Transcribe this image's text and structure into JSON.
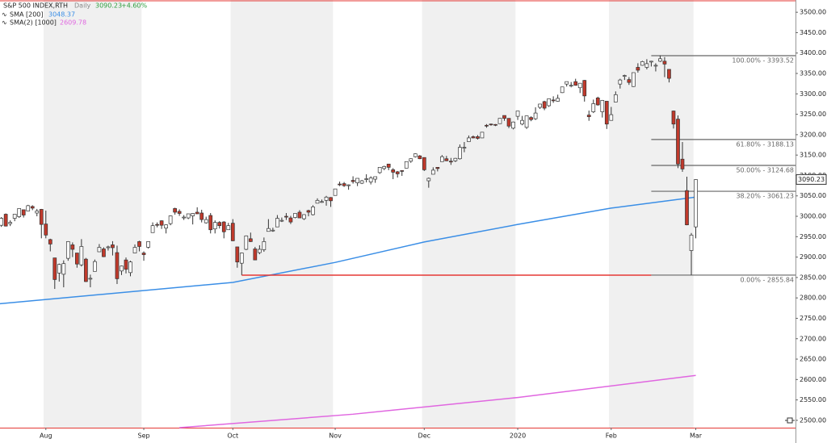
{
  "chart_data": {
    "type": "candlestick",
    "header": {
      "symbol": "S&P 500 INDEX,RTH",
      "interval": "Daily",
      "last_price": 3090.23,
      "change": "+4.60%"
    },
    "up_color": "#ffffff",
    "down_color": "#c0392b",
    "xlim": [
      0.7,
      179.4
    ],
    "ylim": [
      2482,
      3530
    ],
    "xticks": [
      {
        "value": 11,
        "label": "Aug"
      },
      {
        "value": 33,
        "label": "Sep"
      },
      {
        "value": 53,
        "label": "Oct"
      },
      {
        "value": 76,
        "label": "Nov"
      },
      {
        "value": 96,
        "label": "Dec"
      },
      {
        "value": 117,
        "label": "2020"
      },
      {
        "value": 138,
        "label": "Feb"
      },
      {
        "value": 157,
        "label": "Mar"
      }
    ],
    "yticks": [
      {
        "value": 2500,
        "label": "2500.00"
      },
      {
        "value": 2550,
        "label": "2550.00"
      },
      {
        "value": 2600,
        "label": "2600.00"
      },
      {
        "value": 2650,
        "label": "2650.00"
      },
      {
        "value": 2700,
        "label": "2700.00"
      },
      {
        "value": 2750,
        "label": "2750.00"
      },
      {
        "value": 2800,
        "label": "2800.00"
      },
      {
        "value": 2850,
        "label": "2850.00"
      },
      {
        "value": 2900,
        "label": "2900.00"
      },
      {
        "value": 2950,
        "label": "2950.00"
      },
      {
        "value": 3000,
        "label": "3000.00"
      },
      {
        "value": 3050,
        "label": "3050.00"
      },
      {
        "value": 3100,
        "label": "3100.00"
      },
      {
        "value": 3150,
        "label": "3150.00"
      },
      {
        "value": 3200,
        "label": "3200.00"
      },
      {
        "value": 3250,
        "label": "3250.00"
      },
      {
        "value": 3300,
        "label": "3300.00"
      },
      {
        "value": 3350,
        "label": "3350.00"
      },
      {
        "value": 3400,
        "label": "3400.00"
      },
      {
        "value": 3450,
        "label": "3450.00"
      },
      {
        "value": 3500,
        "label": "3500.00"
      }
    ],
    "candles": [
      [
        2999,
        3005,
        2984,
        2984
      ],
      [
        2978,
        2998,
        2974,
        2995
      ],
      [
        3005,
        3007,
        2975,
        2976
      ],
      [
        2982,
        2990,
        2976,
        2985
      ],
      [
        2995,
        3005,
        2988,
        3005
      ],
      [
        2999,
        3019,
        2996,
        3019
      ],
      [
        3016,
        3016,
        2997,
        3003
      ],
      [
        3013,
        3028,
        3013,
        3026
      ],
      [
        3024,
        3027,
        3015,
        3020
      ],
      [
        3008,
        3018,
        3000,
        3013
      ],
      [
        3017,
        3018,
        2946,
        2980
      ],
      [
        2981,
        3014,
        2946,
        2954
      ],
      [
        2943,
        2945,
        2914,
        2932
      ],
      [
        2898,
        2898,
        2822,
        2845
      ],
      [
        2861,
        2884,
        2840,
        2882
      ],
      [
        2858,
        2892,
        2826,
        2884
      ],
      [
        2897,
        2939,
        2891,
        2938
      ],
      [
        2930,
        2936,
        2900,
        2919
      ],
      [
        2910,
        2910,
        2874,
        2883
      ],
      [
        2881,
        2944,
        2877,
        2926
      ],
      [
        2895,
        2898,
        2839,
        2840
      ],
      [
        2846,
        2857,
        2826,
        2848
      ],
      [
        2865,
        2894,
        2865,
        2889
      ],
      [
        2913,
        2932,
        2913,
        2924
      ],
      [
        2920,
        2924,
        2900,
        2901
      ],
      [
        2923,
        2928,
        2916,
        2925
      ],
      [
        2930,
        2939,
        2904,
        2923
      ],
      [
        2911,
        2928,
        2834,
        2847
      ],
      [
        2866,
        2879,
        2856,
        2878
      ],
      [
        2893,
        2899,
        2860,
        2870
      ],
      [
        2862,
        2891,
        2853,
        2888
      ],
      [
        2910,
        2931,
        2910,
        2924
      ],
      [
        2938,
        2940,
        2914,
        2926
      ],
      [
        2910,
        2914,
        2891,
        2906
      ],
      [
        2924,
        2938,
        2921,
        2938
      ],
      [
        2960,
        2985,
        2960,
        2977
      ],
      [
        2980,
        2985,
        2973,
        2979
      ],
      [
        2989,
        2990,
        2969,
        2978
      ],
      [
        2971,
        2980,
        2958,
        2979
      ],
      [
        2982,
        3002,
        2978,
        3001
      ],
      [
        3019,
        3021,
        3004,
        3010
      ],
      [
        3012,
        3017,
        3001,
        3007
      ],
      [
        2997,
        3003,
        2991,
        2998
      ],
      [
        2996,
        3006,
        2993,
        3006
      ],
      [
        3001,
        3008,
        2980,
        3007
      ],
      [
        3010,
        3022,
        3006,
        3006
      ],
      [
        3008,
        3016,
        2985,
        2992
      ],
      [
        2984,
        2999,
        2982,
        2992
      ],
      [
        3002,
        3008,
        2958,
        2967
      ],
      [
        2969,
        2990,
        2958,
        2985
      ],
      [
        2985,
        2988,
        2970,
        2977
      ],
      [
        2986,
        2988,
        2946,
        2962
      ],
      [
        2967,
        2984,
        2967,
        2977
      ],
      [
        2983,
        2993,
        2939,
        2940
      ],
      [
        2925,
        2925,
        2874,
        2888
      ],
      [
        2885,
        2911,
        2856,
        2910
      ],
      [
        2919,
        2953,
        2917,
        2952
      ],
      [
        2945,
        2960,
        2937,
        2938
      ],
      [
        2920,
        2925,
        2893,
        2893
      ],
      [
        2911,
        2929,
        2907,
        2919
      ],
      [
        2918,
        2948,
        2913,
        2938
      ],
      [
        2963,
        2993,
        2963,
        2970
      ],
      [
        2966,
        2972,
        2962,
        2966
      ],
      [
        2974,
        3003,
        2974,
        2995
      ],
      [
        2990,
        2997,
        2986,
        2990
      ],
      [
        3000,
        3008,
        2991,
        2998
      ],
      [
        2996,
        3001,
        2981,
        2986
      ],
      [
        2997,
        3007,
        2995,
        3007
      ],
      [
        3010,
        3015,
        2996,
        2996
      ],
      [
        2994,
        3005,
        2991,
        3004
      ],
      [
        3014,
        3016,
        3000,
        3010
      ],
      [
        3004,
        3027,
        3002,
        3023
      ],
      [
        3032,
        3044,
        3032,
        3039
      ],
      [
        3036,
        3041,
        3033,
        3036
      ],
      [
        3039,
        3050,
        3026,
        3047
      ],
      [
        3046,
        3047,
        3023,
        3038
      ],
      [
        3051,
        3067,
        3051,
        3067
      ],
      [
        3079,
        3085,
        3074,
        3078
      ],
      [
        3080,
        3084,
        3072,
        3075
      ],
      [
        3076,
        3078,
        3065,
        3077
      ],
      [
        3088,
        3098,
        3080,
        3085
      ],
      [
        3082,
        3093,
        3074,
        3093
      ],
      [
        3081,
        3089,
        3079,
        3087
      ],
      [
        3090,
        3103,
        3083,
        3092
      ],
      [
        3084,
        3098,
        3078,
        3094
      ],
      [
        3091,
        3097,
        3082,
        3097
      ],
      [
        3107,
        3120,
        3104,
        3120
      ],
      [
        3117,
        3124,
        3113,
        3122
      ],
      [
        3128,
        3128,
        3113,
        3120
      ],
      [
        3114,
        3118,
        3091,
        3108
      ],
      [
        3109,
        3111,
        3095,
        3104
      ],
      [
        3112,
        3113,
        3099,
        3110
      ],
      [
        3118,
        3134,
        3118,
        3134
      ],
      [
        3135,
        3142,
        3131,
        3141
      ],
      [
        3146,
        3154,
        3144,
        3153
      ],
      [
        3148,
        3150,
        3140,
        3141
      ],
      [
        3144,
        3144,
        3111,
        3114
      ],
      [
        3087,
        3095,
        3070,
        3093
      ],
      [
        3103,
        3120,
        3103,
        3113
      ],
      [
        3120,
        3120,
        3110,
        3117
      ],
      [
        3134,
        3150,
        3134,
        3146
      ],
      [
        3141,
        3148,
        3135,
        3136
      ],
      [
        3135,
        3143,
        3126,
        3133
      ],
      [
        3136,
        3143,
        3133,
        3142
      ],
      [
        3141,
        3176,
        3139,
        3169
      ],
      [
        3167,
        3182,
        3157,
        3169
      ],
      [
        3183,
        3198,
        3183,
        3192
      ],
      [
        3195,
        3198,
        3191,
        3192
      ],
      [
        3195,
        3199,
        3188,
        3191
      ],
      [
        3192,
        3206,
        3192,
        3206
      ],
      [
        3223,
        3226,
        3217,
        3221
      ],
      [
        3226,
        3227,
        3222,
        3224
      ],
      [
        3225,
        3226,
        3221,
        3223
      ],
      [
        3227,
        3240,
        3227,
        3240
      ],
      [
        3247,
        3247,
        3234,
        3240
      ],
      [
        3240,
        3240,
        3216,
        3221
      ],
      [
        3216,
        3232,
        3213,
        3231
      ],
      [
        3245,
        3258,
        3236,
        3258
      ],
      [
        3226,
        3246,
        3223,
        3235
      ],
      [
        3218,
        3246,
        3214,
        3246
      ],
      [
        3242,
        3245,
        3233,
        3237
      ],
      [
        3239,
        3267,
        3236,
        3253
      ],
      [
        3267,
        3275,
        3263,
        3275
      ],
      [
        3281,
        3283,
        3260,
        3265
      ],
      [
        3271,
        3288,
        3268,
        3288
      ],
      [
        3285,
        3294,
        3278,
        3283
      ],
      [
        3282,
        3298,
        3281,
        3289
      ],
      [
        3303,
        3317,
        3302,
        3317
      ],
      [
        3324,
        3330,
        3318,
        3330
      ],
      [
        3321,
        3329,
        3316,
        3321
      ],
      [
        3330,
        3337,
        3320,
        3321
      ],
      [
        3315,
        3326,
        3302,
        3326
      ],
      [
        3333,
        3334,
        3281,
        3295
      ],
      [
        3248,
        3259,
        3234,
        3244
      ],
      [
        3256,
        3286,
        3253,
        3276
      ],
      [
        3290,
        3293,
        3271,
        3273
      ],
      [
        3256,
        3285,
        3242,
        3284
      ],
      [
        3282,
        3282,
        3214,
        3226
      ],
      [
        3235,
        3268,
        3235,
        3249
      ],
      [
        3280,
        3306,
        3280,
        3298
      ],
      [
        3324,
        3337,
        3313,
        3334
      ],
      [
        3344,
        3347,
        3334,
        3345
      ],
      [
        3335,
        3341,
        3322,
        3328
      ],
      [
        3318,
        3352,
        3317,
        3352
      ],
      [
        3365,
        3375,
        3352,
        3358
      ],
      [
        3370,
        3381,
        3369,
        3379
      ],
      [
        3365,
        3385,
        3360,
        3374
      ],
      [
        3378,
        3381,
        3367,
        3380
      ],
      [
        3369,
        3375,
        3355,
        3370
      ],
      [
        3380,
        3394,
        3378,
        3386
      ],
      [
        3380,
        3390,
        3341,
        3373
      ],
      [
        3360,
        3360,
        3328,
        3338
      ],
      [
        3258,
        3259,
        3215,
        3226
      ],
      [
        3238,
        3247,
        3118,
        3128
      ],
      [
        3140,
        3182,
        3109,
        3116
      ],
      [
        3063,
        3097,
        2978,
        2979
      ],
      [
        2916,
        2959,
        2856,
        2954
      ],
      [
        2974,
        3091,
        2946,
        3090
      ]
    ],
    "series": [
      {
        "name": "SMA [200]",
        "last_value": 3048.37,
        "color": "#3a8ee6",
        "x": [
          0,
          53,
          76,
          96,
          117,
          138,
          157
        ],
        "values": [
          2785,
          2838,
          2887,
          2937,
          2980,
          3020,
          3047
        ]
      },
      {
        "name": "SMA(2) [1000]",
        "last_value": 2609.78,
        "color": "#e066e0",
        "x": [
          41,
          80,
          117,
          157
        ],
        "values": [
          2482,
          2515,
          2556,
          2610
        ]
      }
    ],
    "support": {
      "value": 2855.84,
      "x": [
        55,
        147
      ],
      "color": "#e53935"
    },
    "fib_start": 147,
    "fib_levels": [
      {
        "value": 3393.52,
        "label": "100.00% - 3393.52"
      },
      {
        "value": 3188.13,
        "label": "61.80% - 3188.13"
      },
      {
        "value": 3124.68,
        "label": "50.00% - 3124.68"
      },
      {
        "value": 3061.23,
        "label": "38.20% - 3061.23"
      },
      {
        "value": 2855.84,
        "label": "0.00% - 2855.84"
      }
    ]
  }
}
